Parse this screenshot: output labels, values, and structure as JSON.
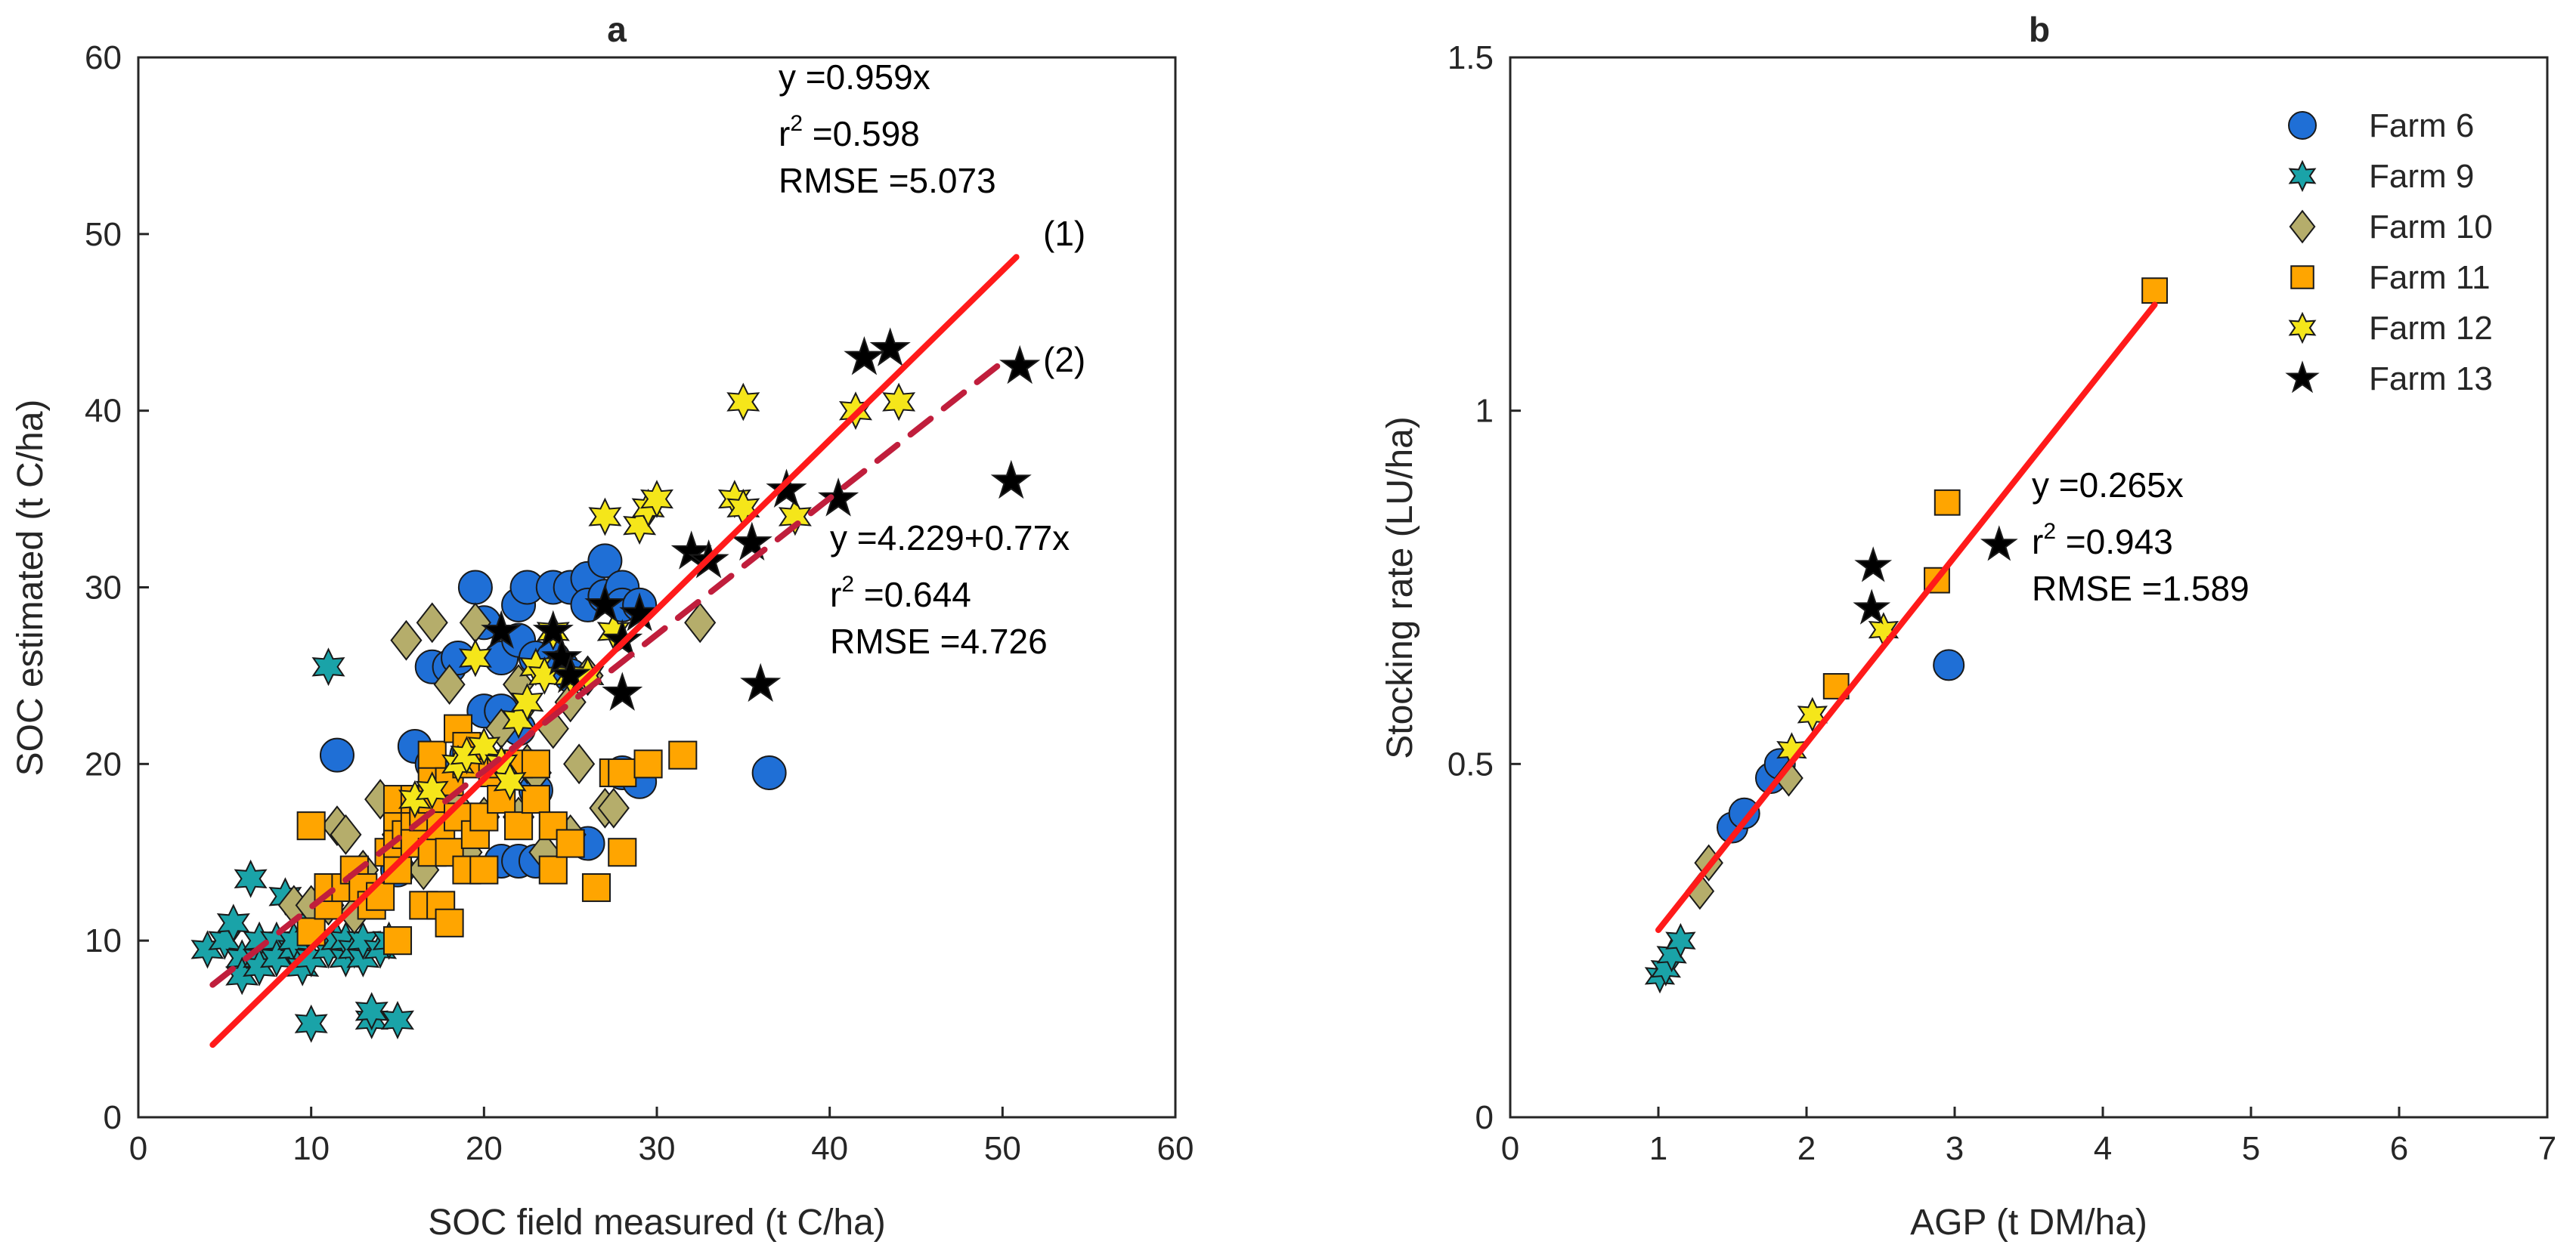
{
  "chart_data": [
    {
      "type": "scatter",
      "panel_title": "a",
      "xlabel": "SOC field measured (t C/ha)",
      "ylabel": "SOC estimated (t C/ha)",
      "xlim": [
        0,
        60
      ],
      "ylim": [
        0,
        60
      ],
      "xticks": [
        0,
        10,
        20,
        30,
        40,
        50,
        60
      ],
      "yticks": [
        0,
        10,
        20,
        30,
        40,
        50,
        60
      ],
      "grid": false,
      "series": [
        {
          "name": "Farm 6",
          "marker": "circle",
          "color": "#1f6fd6",
          "points": [
            [
              11.5,
              20.5
            ],
            [
              15,
              14
            ],
            [
              16,
              21
            ],
            [
              17,
              20
            ],
            [
              17,
              25.5
            ],
            [
              18,
              25.5
            ],
            [
              18.5,
              26
            ],
            [
              19,
              20.5
            ],
            [
              19.5,
              30
            ],
            [
              20,
              23
            ],
            [
              20,
              28
            ],
            [
              21,
              14.5
            ],
            [
              21,
              23
            ],
            [
              21,
              26
            ],
            [
              22,
              22
            ],
            [
              22,
              27
            ],
            [
              22,
              29
            ],
            [
              22,
              14.5
            ],
            [
              22.5,
              30
            ],
            [
              23,
              14.5
            ],
            [
              23,
              18.5
            ],
            [
              23,
              26
            ],
            [
              24,
              30
            ],
            [
              24,
              26
            ],
            [
              24.5,
              25.5
            ],
            [
              25,
              30
            ],
            [
              25,
              25
            ],
            [
              26,
              30.5
            ],
            [
              26,
              29
            ],
            [
              26,
              15.5
            ],
            [
              27,
              29.5
            ],
            [
              27,
              31.5
            ],
            [
              28,
              30
            ],
            [
              28,
              29
            ],
            [
              28,
              19.5
            ],
            [
              29,
              19
            ],
            [
              29,
              29
            ],
            [
              36.5,
              19.5
            ]
          ]
        },
        {
          "name": "Farm 9",
          "marker": "star6",
          "color": "#1aa3a8",
          "points": [
            [
              4,
              9.5
            ],
            [
              5,
              10
            ],
            [
              5.5,
              11
            ],
            [
              6,
              9
            ],
            [
              6,
              8
            ],
            [
              6.5,
              13.5
            ],
            [
              7,
              9
            ],
            [
              7,
              10
            ],
            [
              7,
              8.5
            ],
            [
              8,
              10
            ],
            [
              8,
              9
            ],
            [
              8.5,
              12.5
            ],
            [
              9,
              9.5
            ],
            [
              9,
              10
            ],
            [
              9.5,
              8.5
            ],
            [
              10,
              9
            ],
            [
              10,
              5.3
            ],
            [
              10,
              11
            ],
            [
              11,
              25.5
            ],
            [
              11,
              9.5
            ],
            [
              11.5,
              10
            ],
            [
              12,
              9
            ],
            [
              12,
              10
            ],
            [
              12.5,
              9.5
            ],
            [
              13,
              9
            ],
            [
              13,
              10
            ],
            [
              13.5,
              5.5
            ],
            [
              13.5,
              6
            ],
            [
              14,
              9.5
            ],
            [
              14.5,
              10
            ],
            [
              15,
              5.5
            ]
          ]
        },
        {
          "name": "Farm 10",
          "marker": "diamond",
          "color": "#b5ad6b",
          "points": [
            [
              9,
              12
            ],
            [
              10,
              12
            ],
            [
              11,
              12
            ],
            [
              11.5,
              16.5
            ],
            [
              12,
              16
            ],
            [
              12.5,
              11.5
            ],
            [
              13,
              14
            ],
            [
              14,
              18
            ],
            [
              15,
              16
            ],
            [
              15.5,
              27
            ],
            [
              16,
              17
            ],
            [
              16.5,
              14
            ],
            [
              17,
              28
            ],
            [
              18,
              24.5
            ],
            [
              18.5,
              17.5
            ],
            [
              19,
              15
            ],
            [
              19.5,
              28
            ],
            [
              20,
              17
            ],
            [
              21,
              22
            ],
            [
              22,
              24.5
            ],
            [
              22,
              17
            ],
            [
              22.5,
              20
            ],
            [
              23,
              19.5
            ],
            [
              23.5,
              15
            ],
            [
              24,
              22
            ],
            [
              25,
              16
            ],
            [
              25,
              23.5
            ],
            [
              25.5,
              20
            ],
            [
              26,
              25
            ],
            [
              27,
              17.5
            ],
            [
              27.5,
              17.5
            ],
            [
              32.5,
              28
            ]
          ]
        },
        {
          "name": "Farm 11",
          "marker": "square",
          "color": "#ffa500",
          "points": [
            [
              10,
              16.5
            ],
            [
              10,
              10.5
            ],
            [
              11,
              12
            ],
            [
              11,
              13
            ],
            [
              12,
              13
            ],
            [
              12.5,
              14
            ],
            [
              13,
              13
            ],
            [
              13.5,
              12
            ],
            [
              14,
              12.5
            ],
            [
              14.5,
              15
            ],
            [
              15,
              14
            ],
            [
              15,
              15.5
            ],
            [
              15,
              17
            ],
            [
              15,
              18
            ],
            [
              15,
              10
            ],
            [
              15.5,
              16
            ],
            [
              16,
              16.5
            ],
            [
              16,
              18
            ],
            [
              16,
              15.5
            ],
            [
              16.5,
              17
            ],
            [
              16.5,
              12
            ],
            [
              17,
              20.5
            ],
            [
              17,
              15
            ],
            [
              17,
              18
            ],
            [
              17,
              19
            ],
            [
              17.5,
              12
            ],
            [
              17.5,
              16.5
            ],
            [
              18,
              15
            ],
            [
              18,
              19
            ],
            [
              18,
              11
            ],
            [
              18.5,
              17
            ],
            [
              18.5,
              22
            ],
            [
              19,
              21
            ],
            [
              19,
              14
            ],
            [
              19,
              20
            ],
            [
              19.5,
              16
            ],
            [
              20,
              14
            ],
            [
              20,
              17
            ],
            [
              20.5,
              19.5
            ],
            [
              21,
              20
            ],
            [
              21,
              18
            ],
            [
              22,
              20
            ],
            [
              22,
              16.5
            ],
            [
              23,
              20
            ],
            [
              23,
              18
            ],
            [
              24,
              14
            ],
            [
              24,
              16.5
            ],
            [
              25,
              15.5
            ],
            [
              26.5,
              13
            ],
            [
              27.5,
              19.5
            ],
            [
              28,
              15
            ],
            [
              28,
              19.5
            ],
            [
              29.5,
              20
            ],
            [
              31.5,
              20.5
            ]
          ]
        },
        {
          "name": "Farm 12",
          "marker": "star6",
          "color": "#f5e61a",
          "points": [
            [
              16,
              18
            ],
            [
              17,
              18.5
            ],
            [
              18.5,
              20
            ],
            [
              19,
              20.5
            ],
            [
              19.5,
              26
            ],
            [
              20,
              21
            ],
            [
              21,
              20
            ],
            [
              21.5,
              19
            ],
            [
              22,
              22.5
            ],
            [
              22.5,
              23.5
            ],
            [
              23,
              25.5
            ],
            [
              23.5,
              25
            ],
            [
              24,
              27.5
            ],
            [
              25,
              25
            ],
            [
              26,
              25
            ],
            [
              27,
              34
            ],
            [
              27.5,
              27.5
            ],
            [
              29,
              33.5
            ],
            [
              29.5,
              34.5
            ],
            [
              30,
              35
            ],
            [
              34.5,
              35
            ],
            [
              35,
              40.5
            ],
            [
              35,
              34.5
            ],
            [
              38,
              34
            ],
            [
              41.5,
              40
            ],
            [
              44,
              40.5
            ]
          ]
        },
        {
          "name": "Farm 13",
          "marker": "star5",
          "color": "#000000",
          "points": [
            [
              21,
              27.5
            ],
            [
              24,
              27.5
            ],
            [
              24.5,
              26
            ],
            [
              25,
              25
            ],
            [
              27,
              29
            ],
            [
              28,
              24
            ],
            [
              28,
              27
            ],
            [
              29,
              28.5
            ],
            [
              32,
              32
            ],
            [
              33,
              31.5
            ],
            [
              35.5,
              32.5
            ],
            [
              36,
              24.5
            ],
            [
              37.5,
              35.5
            ],
            [
              40.5,
              35
            ],
            [
              42,
              43
            ],
            [
              43.5,
              43.5
            ],
            [
              50.5,
              36
            ],
            [
              51,
              42.5
            ]
          ]
        }
      ],
      "fits": [
        {
          "label": "(1)",
          "style": "solid",
          "color": "#ff1a1a",
          "x": [
            4.3,
            50.8
          ],
          "y": [
            4.1,
            48.7
          ]
        },
        {
          "label": "(2)",
          "style": "dashed",
          "color": "#c01e3c",
          "x": [
            4.3,
            49.8
          ],
          "y": [
            7.5,
            42.6
          ]
        }
      ],
      "annotations": [
        {
          "lines": [
            "y =0.959x",
            "r2 =0.598",
            "RMSE =5.073"
          ]
        },
        {
          "lines": [
            "y =4.229+0.77x",
            "r2 =0.644",
            "RMSE =4.726"
          ]
        }
      ]
    },
    {
      "type": "scatter",
      "panel_title": "b",
      "xlabel": "AGP (t DM/ha)",
      "ylabel": "Stocking rate (LU/ha)",
      "xlim": [
        0,
        7
      ],
      "ylim": [
        0,
        1.5
      ],
      "xticks": [
        0,
        1,
        2,
        3,
        4,
        5,
        6,
        7
      ],
      "yticks": [
        0,
        0.5,
        1,
        1.5
      ],
      "grid": false,
      "legend_position": "top-right",
      "series": [
        {
          "name": "Farm 6",
          "marker": "circle",
          "color": "#1f6fd6",
          "points": [
            [
              1.5,
              0.41
            ],
            [
              1.58,
              0.43
            ],
            [
              1.76,
              0.48
            ],
            [
              1.82,
              0.5
            ],
            [
              2.96,
              0.64
            ]
          ]
        },
        {
          "name": "Farm 9",
          "marker": "star6",
          "color": "#1aa3a8",
          "points": [
            [
              1.01,
              0.2
            ],
            [
              1.05,
              0.21
            ],
            [
              1.09,
              0.23
            ],
            [
              1.15,
              0.25
            ]
          ]
        },
        {
          "name": "Farm 10",
          "marker": "diamond",
          "color": "#b5ad6b",
          "points": [
            [
              1.28,
              0.32
            ],
            [
              1.34,
              0.36
            ],
            [
              1.88,
              0.48
            ]
          ]
        },
        {
          "name": "Farm 11",
          "marker": "square",
          "color": "#ffa500",
          "points": [
            [
              2.2,
              0.61
            ],
            [
              2.88,
              0.76
            ],
            [
              2.95,
              0.87
            ],
            [
              4.35,
              1.17
            ]
          ]
        },
        {
          "name": "Farm 12",
          "marker": "star6",
          "color": "#f5e61a",
          "points": [
            [
              1.9,
              0.52
            ],
            [
              2.04,
              0.57
            ],
            [
              2.52,
              0.69
            ]
          ]
        },
        {
          "name": "Farm 13",
          "marker": "star5",
          "color": "#000000",
          "points": [
            [
              2.45,
              0.78
            ],
            [
              2.44,
              0.72
            ],
            [
              3.3,
              0.81
            ]
          ]
        }
      ],
      "fits": [
        {
          "label": "",
          "style": "solid",
          "color": "#ff1a1a",
          "x": [
            1.0,
            4.35
          ],
          "y": [
            0.265,
            1.15
          ]
        }
      ],
      "annotations": [
        {
          "lines": [
            "y =0.265x",
            "r2 =0.943",
            "RMSE =1.589"
          ]
        }
      ]
    }
  ]
}
